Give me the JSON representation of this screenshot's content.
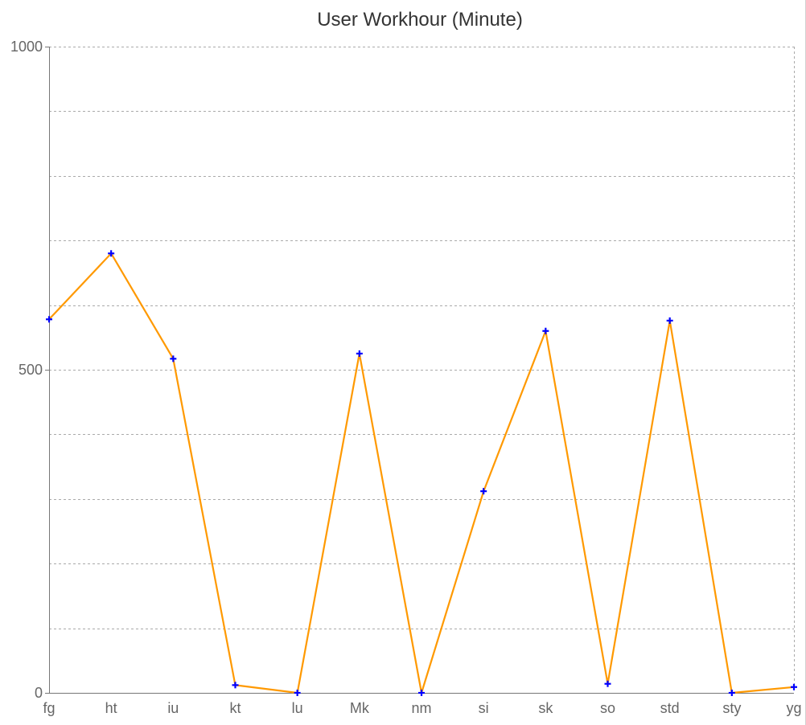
{
  "chart_data": {
    "type": "line",
    "title": "User Workhour (Minute)",
    "xlabel": "",
    "ylabel": "",
    "categories": [
      "fg",
      "ht",
      "iu",
      "kt",
      "lu",
      "Mk",
      "nm",
      "si",
      "sk",
      "so",
      "std",
      "sty",
      "yg"
    ],
    "series": [
      {
        "values": [
          578,
          680,
          517,
          12,
          0,
          525,
          0,
          312,
          560,
          14,
          576,
          0,
          9
        ],
        "line_color": "#ff9900",
        "marker_color": "#0000ff",
        "marker": "plus"
      }
    ],
    "ylim": [
      0,
      1000
    ],
    "yticks": [
      0,
      500,
      1000
    ],
    "grid_step": 100,
    "grid": true,
    "legend": "none"
  }
}
